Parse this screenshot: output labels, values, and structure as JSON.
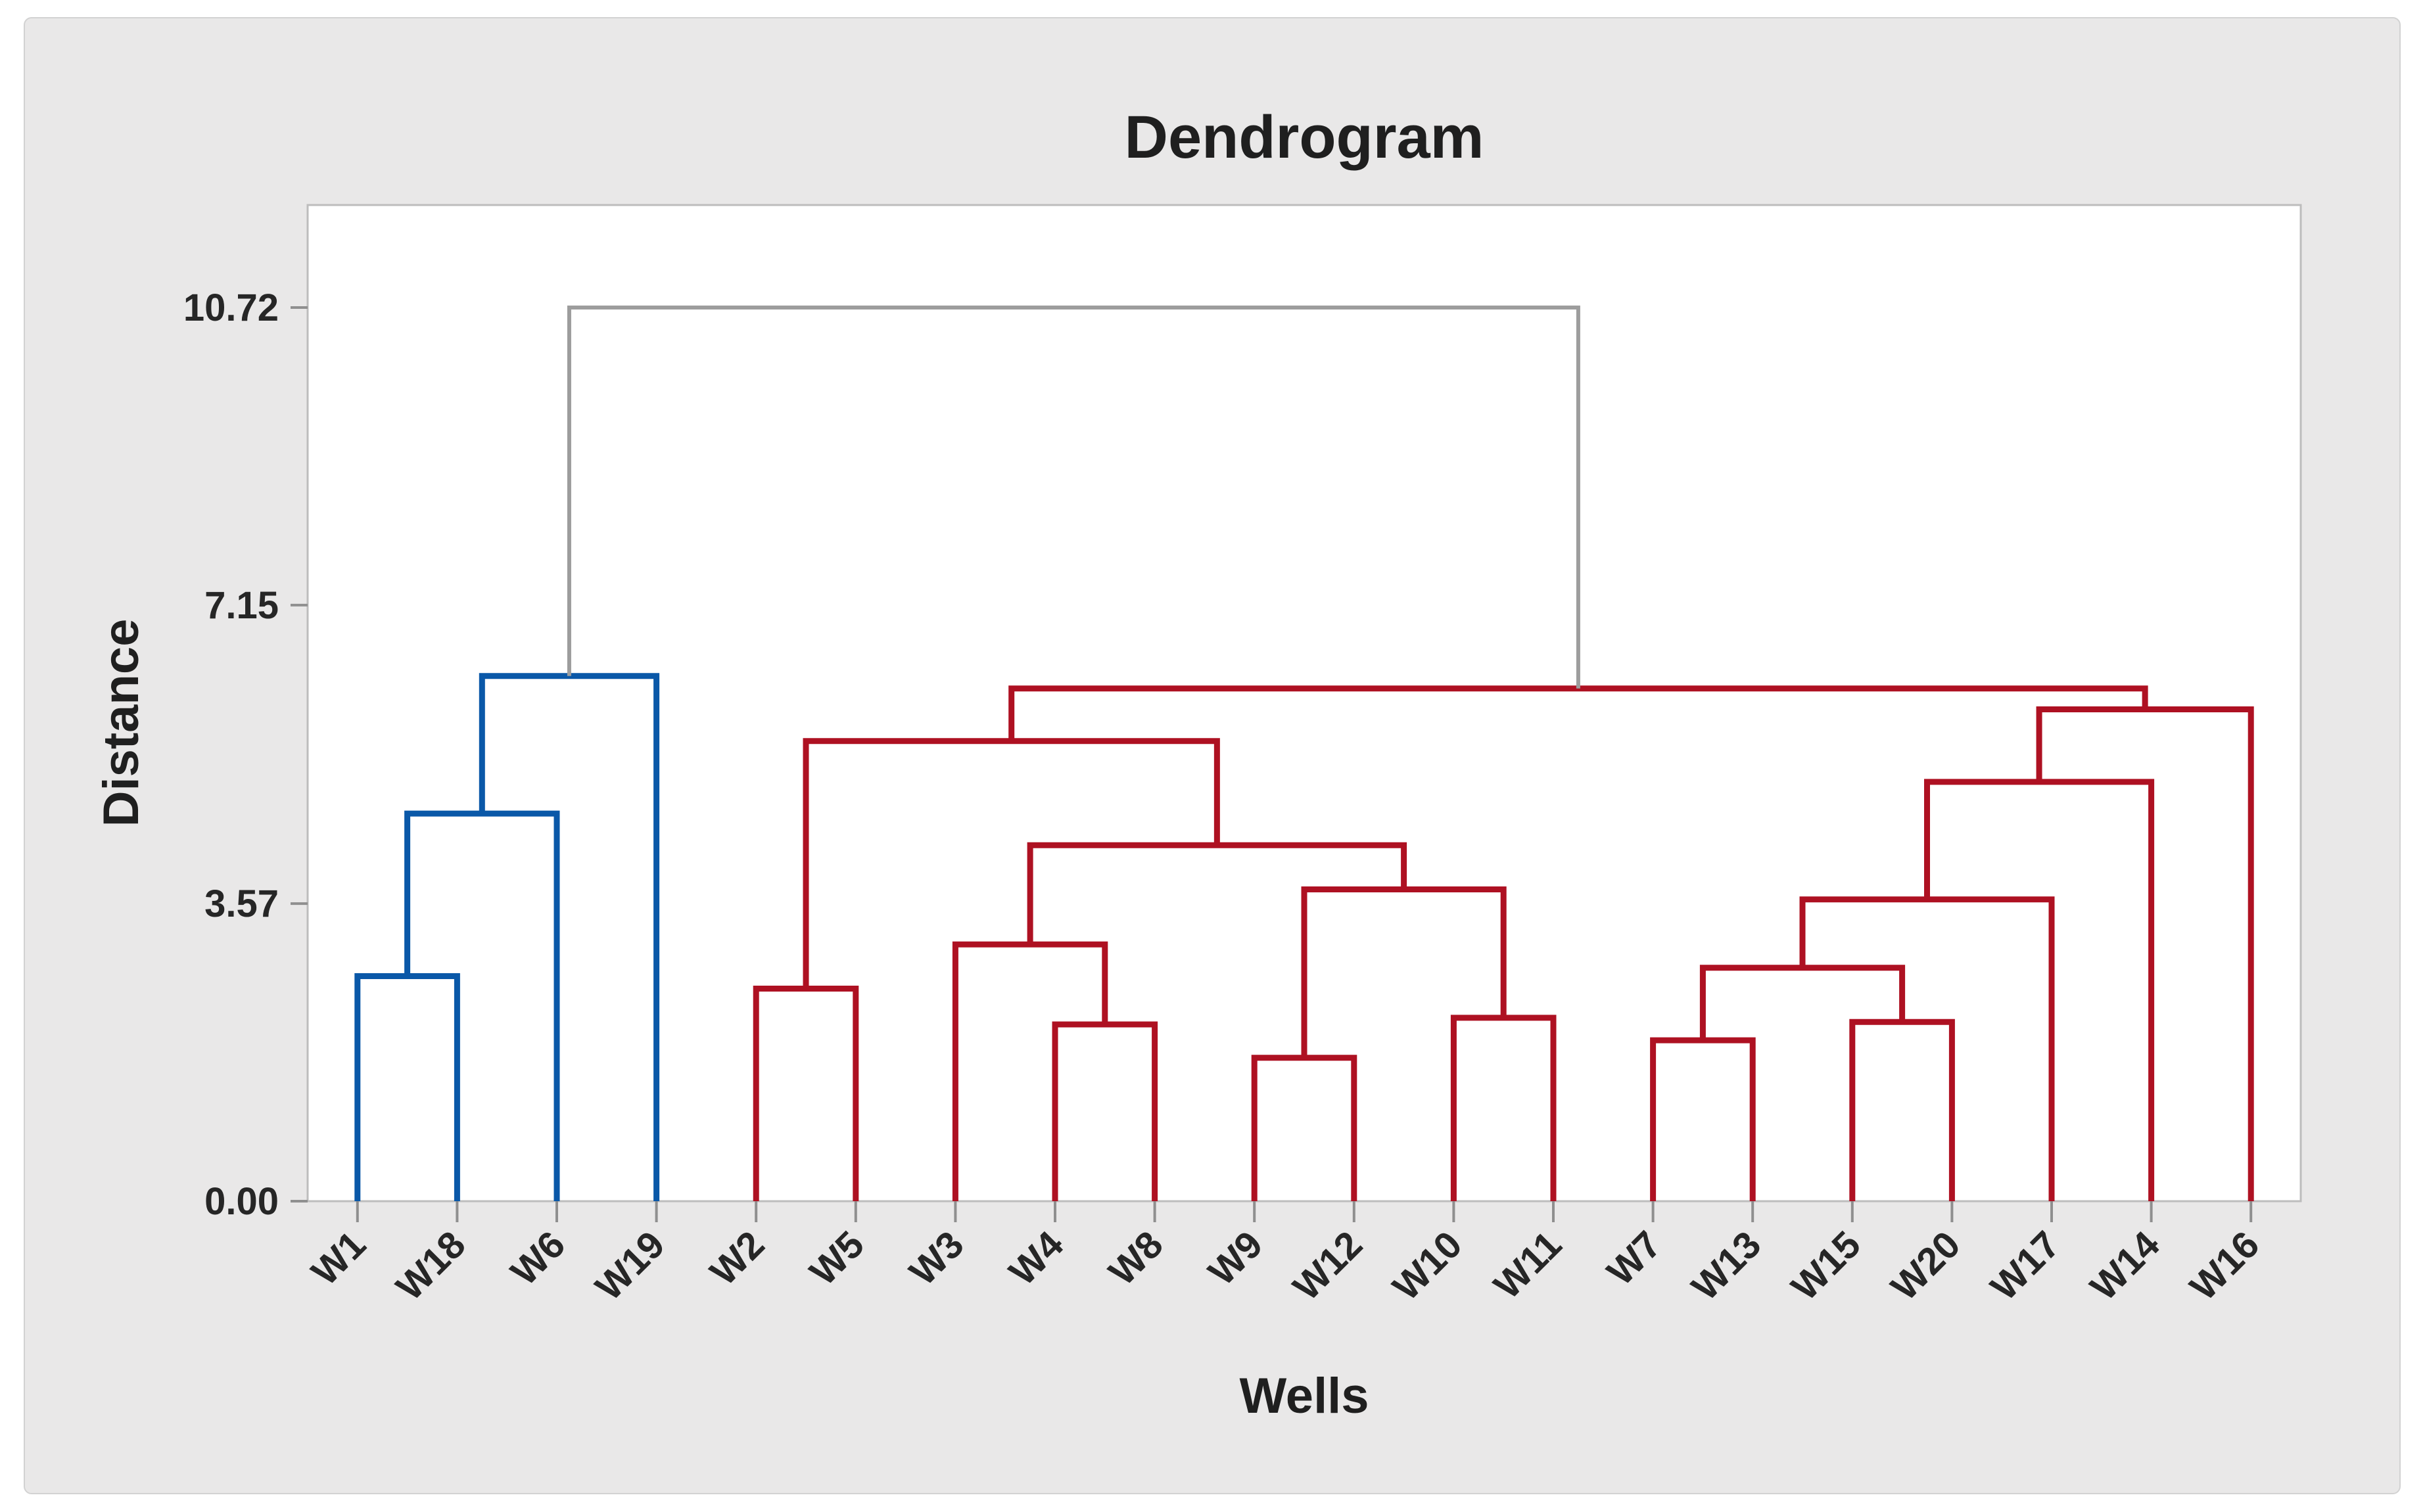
{
  "chart_data": {
    "type": "dendrogram",
    "title": "Dendrogram",
    "xlabel": "Wells",
    "ylabel": "Distance",
    "grid": false,
    "legend": null,
    "ylim": [
      0,
      11.95
    ],
    "yticks": [
      {
        "label": "0.00",
        "value": 0
      },
      {
        "label": "3.57",
        "value": 3.57
      },
      {
        "label": "7.15",
        "value": 7.15
      },
      {
        "label": "10.72",
        "value": 10.72
      }
    ],
    "leaves": [
      "W1",
      "W18",
      "W6",
      "W19",
      "W2",
      "W5",
      "W3",
      "W4",
      "W8",
      "W9",
      "W12",
      "W10",
      "W11",
      "W7",
      "W13",
      "W15",
      "W20",
      "W17",
      "W14",
      "W16"
    ],
    "links": [
      {
        "a": "W1",
        "b": "W18",
        "h": 2.7,
        "c": "blue"
      },
      {
        "a": "M0",
        "b": "W6",
        "h": 4.65,
        "c": "blue"
      },
      {
        "a": "M1",
        "b": "W19",
        "h": 6.3,
        "c": "blue"
      },
      {
        "a": "W2",
        "b": "W5",
        "h": 2.55,
        "c": "red"
      },
      {
        "a": "W4",
        "b": "W8",
        "h": 2.12,
        "c": "red"
      },
      {
        "a": "W3",
        "b": "M4",
        "h": 3.08,
        "c": "red"
      },
      {
        "a": "W9",
        "b": "W12",
        "h": 1.72,
        "c": "red"
      },
      {
        "a": "W10",
        "b": "W11",
        "h": 2.2,
        "c": "red"
      },
      {
        "a": "M6",
        "b": "M7",
        "h": 3.74,
        "c": "red"
      },
      {
        "a": "M5",
        "b": "M8",
        "h": 4.27,
        "c": "red"
      },
      {
        "a": "M3",
        "b": "M9",
        "h": 5.52,
        "c": "red"
      },
      {
        "a": "W7",
        "b": "W13",
        "h": 1.93,
        "c": "red"
      },
      {
        "a": "W15",
        "b": "W20",
        "h": 2.15,
        "c": "red"
      },
      {
        "a": "M11",
        "b": "M12",
        "h": 2.8,
        "c": "red"
      },
      {
        "a": "M13",
        "b": "W17",
        "h": 3.62,
        "c": "red"
      },
      {
        "a": "M14",
        "b": "W14",
        "h": 5.03,
        "c": "red"
      },
      {
        "a": "M15",
        "b": "W16",
        "h": 5.9,
        "c": "red"
      },
      {
        "a": "M10",
        "b": "M16",
        "h": 6.15,
        "c": "red"
      },
      {
        "a": "M2",
        "b": "M17",
        "h": 10.72,
        "c": "gray"
      }
    ],
    "colors": {
      "blue": "#0a58a8",
      "red": "#ae1122",
      "gray": "#9d9d9d",
      "frame": "#bdbdbd",
      "tick": "#8f8f8f",
      "label": "#262626"
    }
  }
}
